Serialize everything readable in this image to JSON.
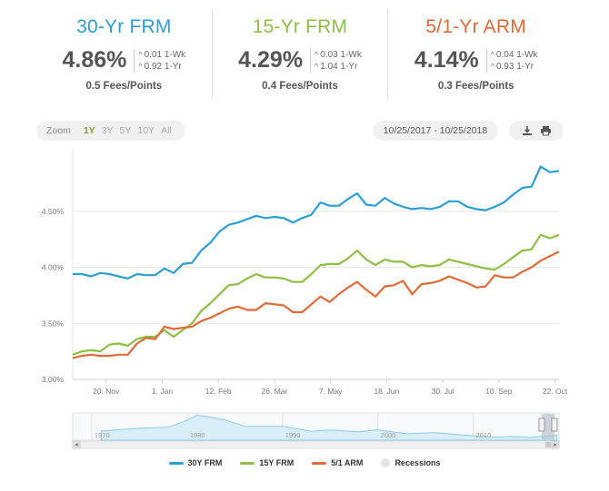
{
  "summary": [
    {
      "title": "30-Yr FRM",
      "color": "#2a9fd6",
      "value": "4.86%",
      "wk": "0.01 1-Wk",
      "yr": "0.92 1-Yr",
      "fees": "0.5 Fees/Points"
    },
    {
      "title": "15-Yr FRM",
      "color": "#8dbf45",
      "value": "4.29%",
      "wk": "0.03 1-Wk",
      "yr": "1.04 1-Yr",
      "fees": "0.4 Fees/Points"
    },
    {
      "title": "5/1-Yr ARM",
      "color": "#e06a35",
      "value": "4.14%",
      "wk": "0.04 1-Wk",
      "yr": "0.93 1-Yr",
      "fees": "0.3 Fees/Points"
    }
  ],
  "toolbar": {
    "zoom_label": "Zoom",
    "zoom_buttons": [
      "1Y",
      "3Y",
      "5Y",
      "10Y",
      "All"
    ],
    "active_zoom": "1Y",
    "date_range": "10/25/2017 - 10/25/2018",
    "icons": [
      "download-icon",
      "print-icon"
    ]
  },
  "chart_data": {
    "type": "line",
    "x_labels": [
      "20. Nov",
      "1. Jan",
      "12. Feb",
      "26. Mar",
      "7. May",
      "18. Jun",
      "30. Jul",
      "10. Sep",
      "22. Oct"
    ],
    "x_range": [
      "2017-10-26",
      "2018-10-25"
    ],
    "yticks": [
      "3.00%",
      "3.50%",
      "4.00%",
      "4.50%"
    ],
    "ylim": [
      3.0,
      5.05
    ],
    "grid": true,
    "legend_position": "bottom",
    "series": [
      {
        "name": "30Y FRM",
        "color": "#2a9fd6",
        "values": [
          3.94,
          3.94,
          3.92,
          3.95,
          3.94,
          3.92,
          3.9,
          3.94,
          3.93,
          3.93,
          3.99,
          3.95,
          4.03,
          4.04,
          4.15,
          4.22,
          4.32,
          4.38,
          4.4,
          4.43,
          4.46,
          4.44,
          4.45,
          4.44,
          4.4,
          4.44,
          4.47,
          4.58,
          4.55,
          4.55,
          4.61,
          4.66,
          4.56,
          4.55,
          4.62,
          4.57,
          4.54,
          4.52,
          4.53,
          4.52,
          4.54,
          4.59,
          4.59,
          4.54,
          4.52,
          4.51,
          4.54,
          4.58,
          4.65,
          4.71,
          4.72,
          4.9,
          4.85,
          4.86
        ]
      },
      {
        "name": "15Y FRM",
        "color": "#8dbf45",
        "values": [
          3.22,
          3.25,
          3.26,
          3.25,
          3.31,
          3.32,
          3.3,
          3.36,
          3.38,
          3.38,
          3.44,
          3.38,
          3.44,
          3.5,
          3.61,
          3.68,
          3.76,
          3.84,
          3.85,
          3.9,
          3.94,
          3.91,
          3.91,
          3.9,
          3.87,
          3.87,
          3.94,
          4.02,
          4.03,
          4.03,
          4.08,
          4.15,
          4.07,
          4.02,
          4.07,
          4.05,
          4.05,
          4.0,
          4.02,
          4.01,
          4.02,
          4.07,
          4.05,
          4.03,
          4.01,
          3.99,
          3.98,
          4.03,
          4.09,
          4.15,
          4.16,
          4.29,
          4.26,
          4.29
        ]
      },
      {
        "name": "5/1 ARM",
        "color": "#e06a35",
        "values": [
          3.19,
          3.21,
          3.22,
          3.21,
          3.21,
          3.22,
          3.22,
          3.32,
          3.37,
          3.36,
          3.47,
          3.45,
          3.46,
          3.47,
          3.52,
          3.55,
          3.59,
          3.63,
          3.65,
          3.62,
          3.62,
          3.68,
          3.67,
          3.66,
          3.6,
          3.6,
          3.67,
          3.74,
          3.69,
          3.76,
          3.82,
          3.87,
          3.8,
          3.74,
          3.83,
          3.84,
          3.88,
          3.76,
          3.85,
          3.86,
          3.88,
          3.92,
          3.89,
          3.86,
          3.82,
          3.83,
          3.93,
          3.91,
          3.91,
          3.96,
          4.0,
          4.06,
          4.1,
          4.14
        ]
      }
    ],
    "navigator": {
      "x_labels": [
        "1970",
        "1980",
        "1990",
        "2000",
        "2010"
      ],
      "recessions_label": "Recessions"
    }
  }
}
